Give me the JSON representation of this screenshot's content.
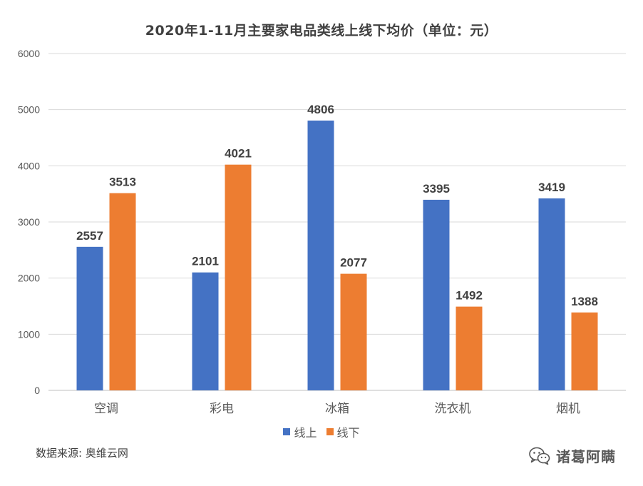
{
  "chart_data": {
    "type": "bar",
    "title": "2020年1-11月主要家电品类线上线下均价（单位：元）",
    "categories": [
      "空调",
      "彩电",
      "冰箱",
      "洗衣机",
      "烟机"
    ],
    "series": [
      {
        "name": "线上",
        "color": "#4472C4",
        "values": [
          2557,
          2101,
          4806,
          3395,
          3419
        ]
      },
      {
        "name": "线下",
        "color": "#ED7D31",
        "values": [
          3513,
          4021,
          2077,
          1492,
          1388
        ]
      }
    ],
    "ylim": [
      0,
      6000
    ],
    "yticks": [
      "0",
      "1000",
      "2000",
      "3000",
      "4000",
      "5000",
      "6000"
    ],
    "grid": true,
    "legend_position": "bottom"
  },
  "source": {
    "label": "数据来源:",
    "value": "奥维云网"
  },
  "watermark": {
    "text": "诸葛阿瞒",
    "icon": "wechat-icon"
  }
}
